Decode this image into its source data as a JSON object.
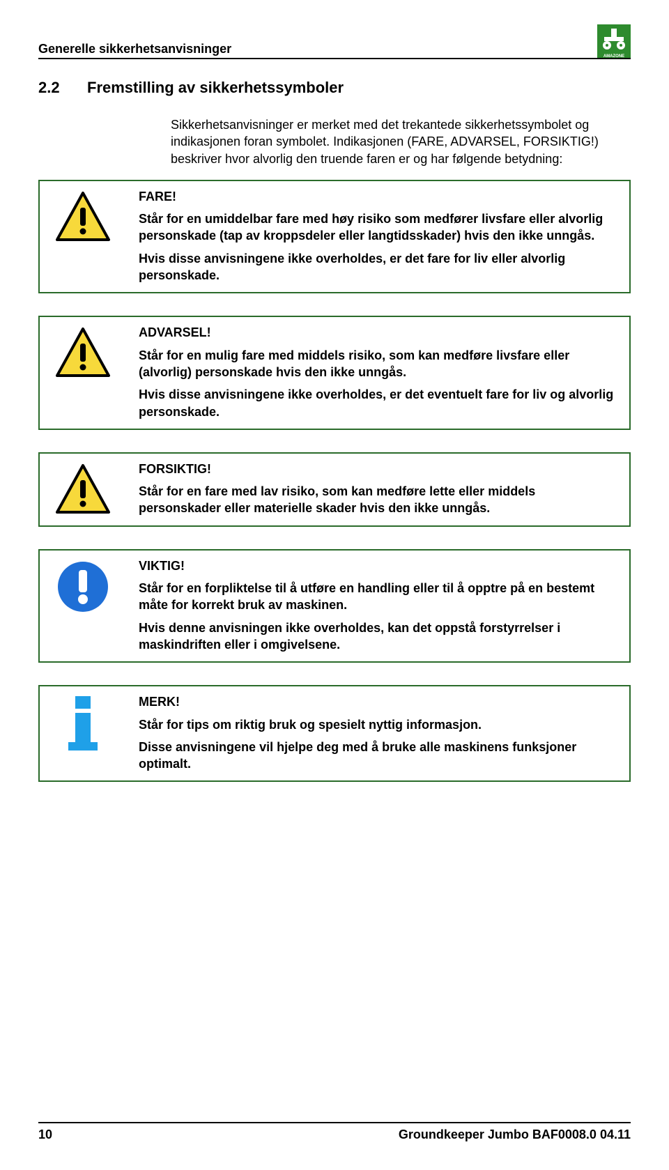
{
  "header": {
    "title": "Generelle sikkerhetsanvisninger",
    "logo_bg": "#2e8b2e",
    "logo_fg": "#ffffff",
    "logo_letters": "AMAZONE"
  },
  "section": {
    "number": "2.2",
    "title": "Fremstilling av sikkerhetssymboler"
  },
  "intro": "Sikkerhetsanvisninger er merket med det trekantede sikkerhetssymbolet og indikasjonen foran symbolet. Indikasjonen (FARE, ADVARSEL, FORSIKTIG!) beskriver hvor alvorlig den truende faren er og har følgende betydning:",
  "boxes": [
    {
      "icon": "warning-triangle",
      "title": "FARE!",
      "paragraphs": [
        "Står for en umiddelbar fare med høy risiko som medfører livsfare eller alvorlig personskade (tap av kroppsdeler eller langtidsskader) hvis den ikke unngås.",
        "Hvis disse anvisningene ikke overholdes, er det fare for liv eller alvorlig personskade."
      ]
    },
    {
      "icon": "warning-triangle",
      "title": "ADVARSEL!",
      "paragraphs": [
        "Står for en mulig fare med middels risiko, som kan medføre livsfare eller (alvorlig) personskade hvis den ikke unngås.",
        "Hvis disse anvisningene ikke overholdes, er det eventuelt fare for liv og alvorlig personskade."
      ]
    },
    {
      "icon": "warning-triangle",
      "title": "FORSIKTIG!",
      "paragraphs": [
        "Står for en fare med lav risiko, som kan medføre lette eller middels personskader eller materielle skader hvis den ikke unngås."
      ]
    },
    {
      "icon": "exclaim-circle",
      "title": "VIKTIG!",
      "paragraphs": [
        "Står for en forpliktelse til å utføre en handling eller til å opptre på en bestemt måte for korrekt bruk av maskinen.",
        "Hvis denne anvisningen ikke overholdes, kan det oppstå forstyrrelser i maskindriften eller i omgivelsene."
      ]
    },
    {
      "icon": "info-i",
      "title": "MERK!",
      "paragraphs": [
        "Står for tips om riktig bruk og spesielt nyttig informasjon.",
        "Disse anvisningene vil hjelpe deg med å bruke alle maskinens funksjoner optimalt."
      ]
    }
  ],
  "footer": {
    "page": "10",
    "doc": "Groundkeeper Jumbo  BAF0008.0  04.11"
  },
  "colors": {
    "border": "#2a6b2a",
    "triangle_fill": "#f7d93b",
    "triangle_stroke": "#000000",
    "circle_fill": "#1f6fd6",
    "info_fill": "#1fa0e8",
    "text": "#000000"
  }
}
